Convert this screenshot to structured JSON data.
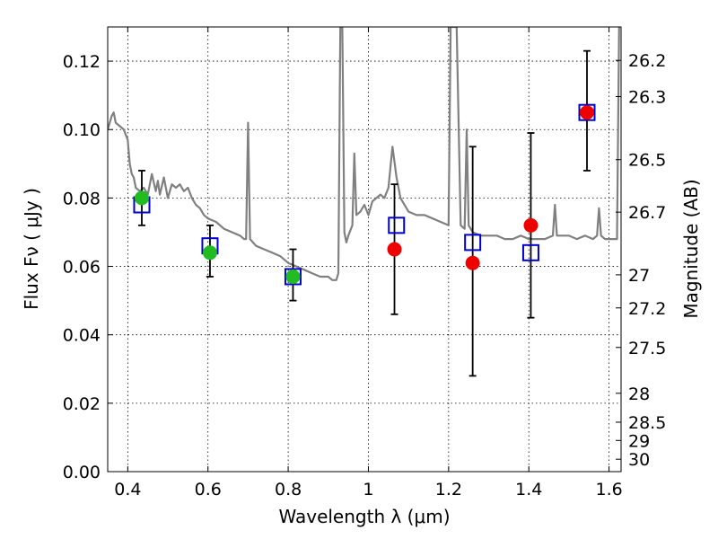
{
  "chart_data": {
    "type": "scatter",
    "title": "",
    "xlabel": "Wavelength  λ (μm)",
    "ylabel": "Flux  Fν  ( μJy )",
    "ylabel_right": "Magnitude (AB)",
    "xlim": [
      0.35,
      1.63
    ],
    "ylim": [
      0.0,
      0.13
    ],
    "grid": true,
    "x_ticks": [
      0.4,
      0.6,
      0.8,
      1.0,
      1.2,
      1.4,
      1.6
    ],
    "x_tick_labels": [
      "0.4",
      "0.6",
      "0.8",
      "1",
      "1.2",
      "1.4",
      "1.6"
    ],
    "y_ticks": [
      0.0,
      0.02,
      0.04,
      0.06,
      0.08,
      0.1,
      0.12
    ],
    "y_tick_labels": [
      "0.00",
      "0.02",
      "0.04",
      "0.06",
      "0.08",
      "0.10",
      "0.12"
    ],
    "right_ticks": [
      {
        "mag": 26.2,
        "label": "26.2"
      },
      {
        "mag": 26.3,
        "label": "26.3"
      },
      {
        "mag": 26.5,
        "label": "26.5"
      },
      {
        "mag": 26.7,
        "label": "26.7"
      },
      {
        "mag": 27.0,
        "label": "27"
      },
      {
        "mag": 27.2,
        "label": "27.2"
      },
      {
        "mag": 27.5,
        "label": "27.5"
      },
      {
        "mag": 28.0,
        "label": "28"
      },
      {
        "mag": 28.5,
        "label": "28.5"
      },
      {
        "mag": 29.0,
        "label": "29"
      },
      {
        "mag": 30.0,
        "label": "30"
      }
    ],
    "series": [
      {
        "marker": "spectrum-line",
        "color": "#808080",
        "points": [
          [
            0.35,
            0.1
          ],
          [
            0.36,
            0.104
          ],
          [
            0.365,
            0.105
          ],
          [
            0.37,
            0.102
          ],
          [
            0.38,
            0.101
          ],
          [
            0.39,
            0.1
          ],
          [
            0.4,
            0.097
          ],
          [
            0.405,
            0.09
          ],
          [
            0.41,
            0.087
          ],
          [
            0.415,
            0.086
          ],
          [
            0.42,
            0.083
          ],
          [
            0.43,
            0.082
          ],
          [
            0.44,
            0.083
          ],
          [
            0.45,
            0.081
          ],
          [
            0.46,
            0.087
          ],
          [
            0.47,
            0.082
          ],
          [
            0.475,
            0.085
          ],
          [
            0.48,
            0.081
          ],
          [
            0.49,
            0.086
          ],
          [
            0.5,
            0.08
          ],
          [
            0.51,
            0.084
          ],
          [
            0.52,
            0.083
          ],
          [
            0.53,
            0.084
          ],
          [
            0.54,
            0.082
          ],
          [
            0.55,
            0.083
          ],
          [
            0.56,
            0.08
          ],
          [
            0.57,
            0.078
          ],
          [
            0.58,
            0.077
          ],
          [
            0.59,
            0.075
          ],
          [
            0.6,
            0.074
          ],
          [
            0.62,
            0.073
          ],
          [
            0.64,
            0.071
          ],
          [
            0.66,
            0.07
          ],
          [
            0.68,
            0.069
          ],
          [
            0.69,
            0.068
          ],
          [
            0.695,
            0.068
          ],
          [
            0.7,
            0.102
          ],
          [
            0.705,
            0.068
          ],
          [
            0.72,
            0.066
          ],
          [
            0.74,
            0.065
          ],
          [
            0.76,
            0.064
          ],
          [
            0.78,
            0.063
          ],
          [
            0.8,
            0.061
          ],
          [
            0.82,
            0.06
          ],
          [
            0.84,
            0.059
          ],
          [
            0.86,
            0.058
          ],
          [
            0.88,
            0.057
          ],
          [
            0.9,
            0.057
          ],
          [
            0.91,
            0.056
          ],
          [
            0.92,
            0.056
          ],
          [
            0.925,
            0.058
          ],
          [
            0.93,
            0.13
          ],
          [
            0.935,
            0.13
          ],
          [
            0.94,
            0.07
          ],
          [
            0.945,
            0.067
          ],
          [
            0.95,
            0.069
          ],
          [
            0.96,
            0.072
          ],
          [
            0.965,
            0.093
          ],
          [
            0.97,
            0.075
          ],
          [
            0.98,
            0.076
          ],
          [
            0.99,
            0.078
          ],
          [
            1.0,
            0.075
          ],
          [
            1.01,
            0.079
          ],
          [
            1.02,
            0.08
          ],
          [
            1.03,
            0.081
          ],
          [
            1.04,
            0.08
          ],
          [
            1.05,
            0.083
          ],
          [
            1.06,
            0.095
          ],
          [
            1.07,
            0.086
          ],
          [
            1.08,
            0.08
          ],
          [
            1.1,
            0.076
          ],
          [
            1.12,
            0.075
          ],
          [
            1.14,
            0.075
          ],
          [
            1.16,
            0.074
          ],
          [
            1.18,
            0.073
          ],
          [
            1.2,
            0.072
          ],
          [
            1.205,
            0.13
          ],
          [
            1.21,
            0.13
          ],
          [
            1.22,
            0.13
          ],
          [
            1.23,
            0.072
          ],
          [
            1.24,
            0.071
          ],
          [
            1.245,
            0.1
          ],
          [
            1.25,
            0.072
          ],
          [
            1.26,
            0.07
          ],
          [
            1.28,
            0.069
          ],
          [
            1.3,
            0.069
          ],
          [
            1.32,
            0.069
          ],
          [
            1.34,
            0.068
          ],
          [
            1.36,
            0.068
          ],
          [
            1.38,
            0.069
          ],
          [
            1.4,
            0.068
          ],
          [
            1.42,
            0.068
          ],
          [
            1.44,
            0.068
          ],
          [
            1.46,
            0.069
          ],
          [
            1.465,
            0.078
          ],
          [
            1.47,
            0.069
          ],
          [
            1.48,
            0.069
          ],
          [
            1.5,
            0.069
          ],
          [
            1.52,
            0.068
          ],
          [
            1.54,
            0.069
          ],
          [
            1.56,
            0.068
          ],
          [
            1.57,
            0.069
          ],
          [
            1.575,
            0.077
          ],
          [
            1.58,
            0.069
          ],
          [
            1.59,
            0.068
          ],
          [
            1.61,
            0.068
          ],
          [
            1.62,
            0.068
          ],
          [
            1.625,
            0.13
          ]
        ]
      },
      {
        "marker": "open-square",
        "color": "#0000cc",
        "points": [
          [
            0.435,
            0.078
          ],
          [
            0.605,
            0.066
          ],
          [
            0.812,
            0.057
          ],
          [
            1.07,
            0.072
          ],
          [
            1.26,
            0.067
          ],
          [
            1.405,
            0.064
          ],
          [
            1.545,
            0.105
          ]
        ]
      },
      {
        "marker": "filled-circle",
        "color": "#22bb22",
        "points": [
          [
            0.435,
            0.08
          ],
          [
            0.605,
            0.064
          ],
          [
            0.812,
            0.057
          ]
        ]
      },
      {
        "marker": "filled-circle",
        "color": "#ee0000",
        "points": [
          [
            1.065,
            0.065
          ],
          [
            1.26,
            0.061
          ],
          [
            1.405,
            0.072
          ],
          [
            1.545,
            0.105
          ]
        ]
      }
    ],
    "error_bars": [
      {
        "x": 0.435,
        "low": 0.072,
        "high": 0.088
      },
      {
        "x": 0.605,
        "low": 0.057,
        "high": 0.072
      },
      {
        "x": 0.812,
        "low": 0.05,
        "high": 0.065
      },
      {
        "x": 1.065,
        "low": 0.046,
        "high": 0.084
      },
      {
        "x": 1.26,
        "low": 0.028,
        "high": 0.095
      },
      {
        "x": 1.405,
        "low": 0.045,
        "high": 0.099
      },
      {
        "x": 1.545,
        "low": 0.088,
        "high": 0.123
      }
    ]
  }
}
